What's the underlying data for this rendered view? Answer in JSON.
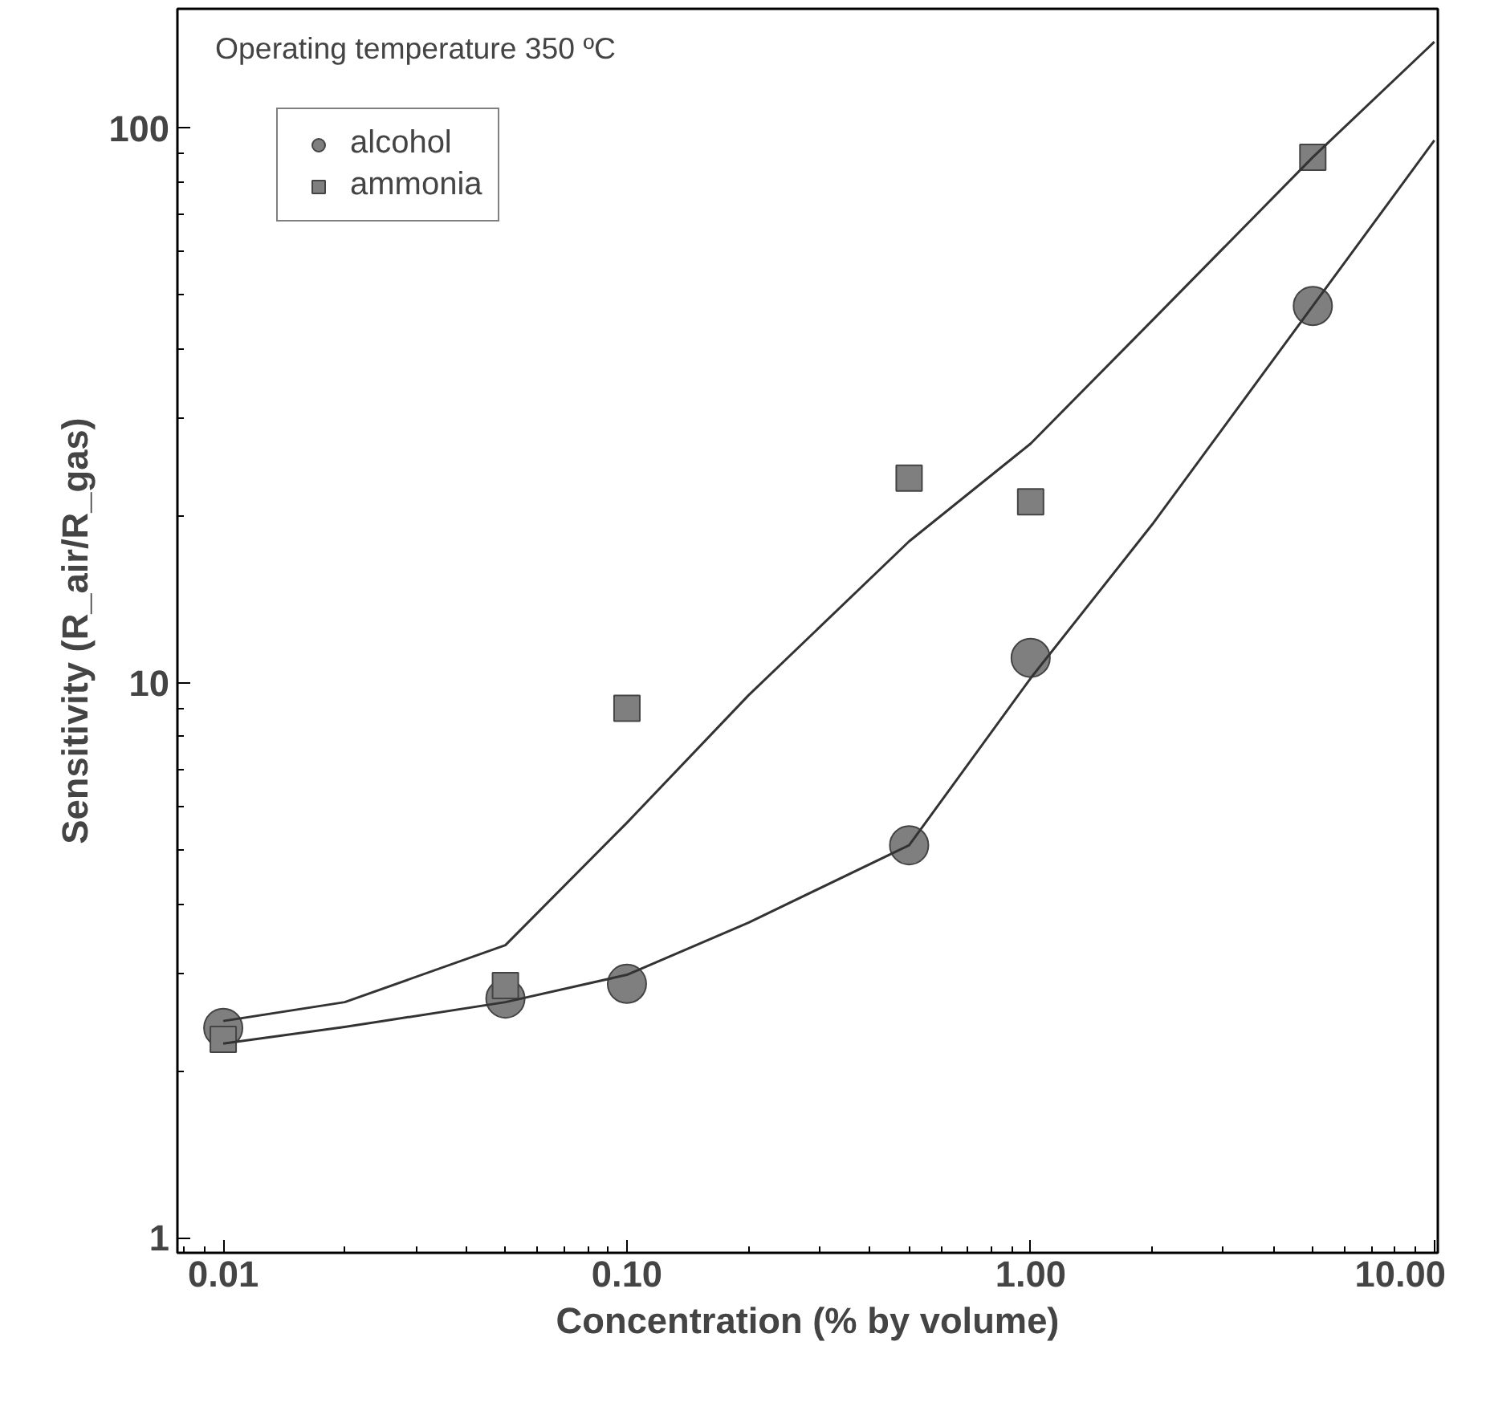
{
  "chart_data": {
    "type": "scatter",
    "xlabel": "Concentration (% by volume)",
    "ylabel": "Sensitivity (R_air/R_gas)",
    "annotations": [
      "Operating temperature 350 ºC"
    ],
    "log": "xy",
    "grid": false,
    "legend": "top left",
    "xlim": [
      0.0077,
      10.2
    ],
    "ylim": [
      0.94,
      164
    ],
    "xticks": [
      {
        "value": 0.01,
        "label": "0.01"
      },
      {
        "value": 0.1,
        "label": "0.10"
      },
      {
        "value": 1,
        "label": "1.00"
      },
      {
        "value": 10,
        "label": "10.00"
      }
    ],
    "yticks": [
      1,
      10,
      100
    ],
    "series": [
      {
        "name": "alcohol",
        "marker": "circle",
        "color": "#7f7f7f",
        "x": [
          0.01,
          0.05,
          0.1,
          0.5,
          1.0,
          5.0
        ],
        "values": [
          2.39,
          2.7,
          2.87,
          5.1,
          11.1,
          47.8
        ]
      },
      {
        "name": "ammonia",
        "marker": "square",
        "color": "#7f7f7f",
        "x": [
          0.01,
          0.05,
          0.1,
          0.5,
          1.0,
          5.0
        ],
        "values": [
          2.28,
          2.85,
          9.0,
          23.4,
          21.2,
          88.6
        ]
      },
      {
        "type": "line",
        "marker": "none",
        "color": "#333333",
        "x": [
          0.01,
          0.02,
          0.05,
          0.1,
          0.2,
          0.5,
          1.0,
          2.0,
          5.0,
          10.0
        ],
        "values": [
          2.46,
          2.66,
          3.37,
          5.6,
          9.5,
          18,
          27,
          45,
          88.6,
          143
        ]
      },
      {
        "type": "line",
        "marker": "none",
        "color": "#333333",
        "x": [
          0.01,
          0.02,
          0.05,
          0.1,
          0.2,
          0.5,
          1.0,
          2.0,
          5.0,
          10.0
        ],
        "values": [
          2.24,
          2.4,
          2.66,
          2.98,
          3.7,
          5.1,
          10.2,
          19.3,
          47.8,
          95
        ]
      }
    ]
  }
}
